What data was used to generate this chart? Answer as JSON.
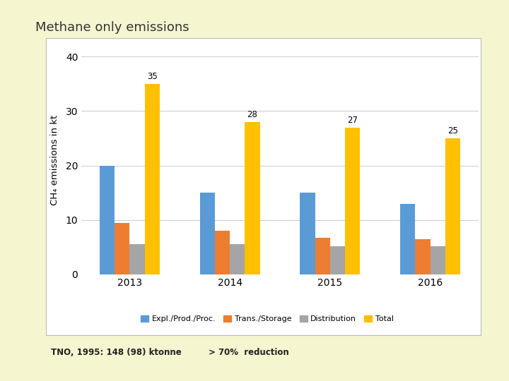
{
  "title": "Methane only emissions",
  "years": [
    2013,
    2014,
    2015,
    2016
  ],
  "series": {
    "Expl./Prod./Proc.": [
      20,
      15,
      15,
      13
    ],
    "Trans./Storage": [
      9.5,
      8,
      6.7,
      6.5
    ],
    "Distribution": [
      5.5,
      5.5,
      5.2,
      5.1
    ],
    "Total": [
      35,
      28,
      27,
      25
    ]
  },
  "bar_colors": {
    "Expl./Prod./Proc.": "#5B9BD5",
    "Trans./Storage": "#ED7D31",
    "Distribution": "#A5A5A5",
    "Total": "#FFC000"
  },
  "total_labels": [
    35,
    28,
    27,
    25
  ],
  "ylabel": "CH₄ emissions in kt",
  "ylim": [
    0,
    42
  ],
  "yticks": [
    0,
    10,
    20,
    30,
    40
  ],
  "footnote_left": "TNO, 1995: 148 (98) ktonne",
  "footnote_right": "> 70%  reduction",
  "background_color": "#F5F5D0",
  "plot_bg_color": "#FFFFFF",
  "bar_width": 0.15,
  "panel_edge_color": "#CCCCCC"
}
